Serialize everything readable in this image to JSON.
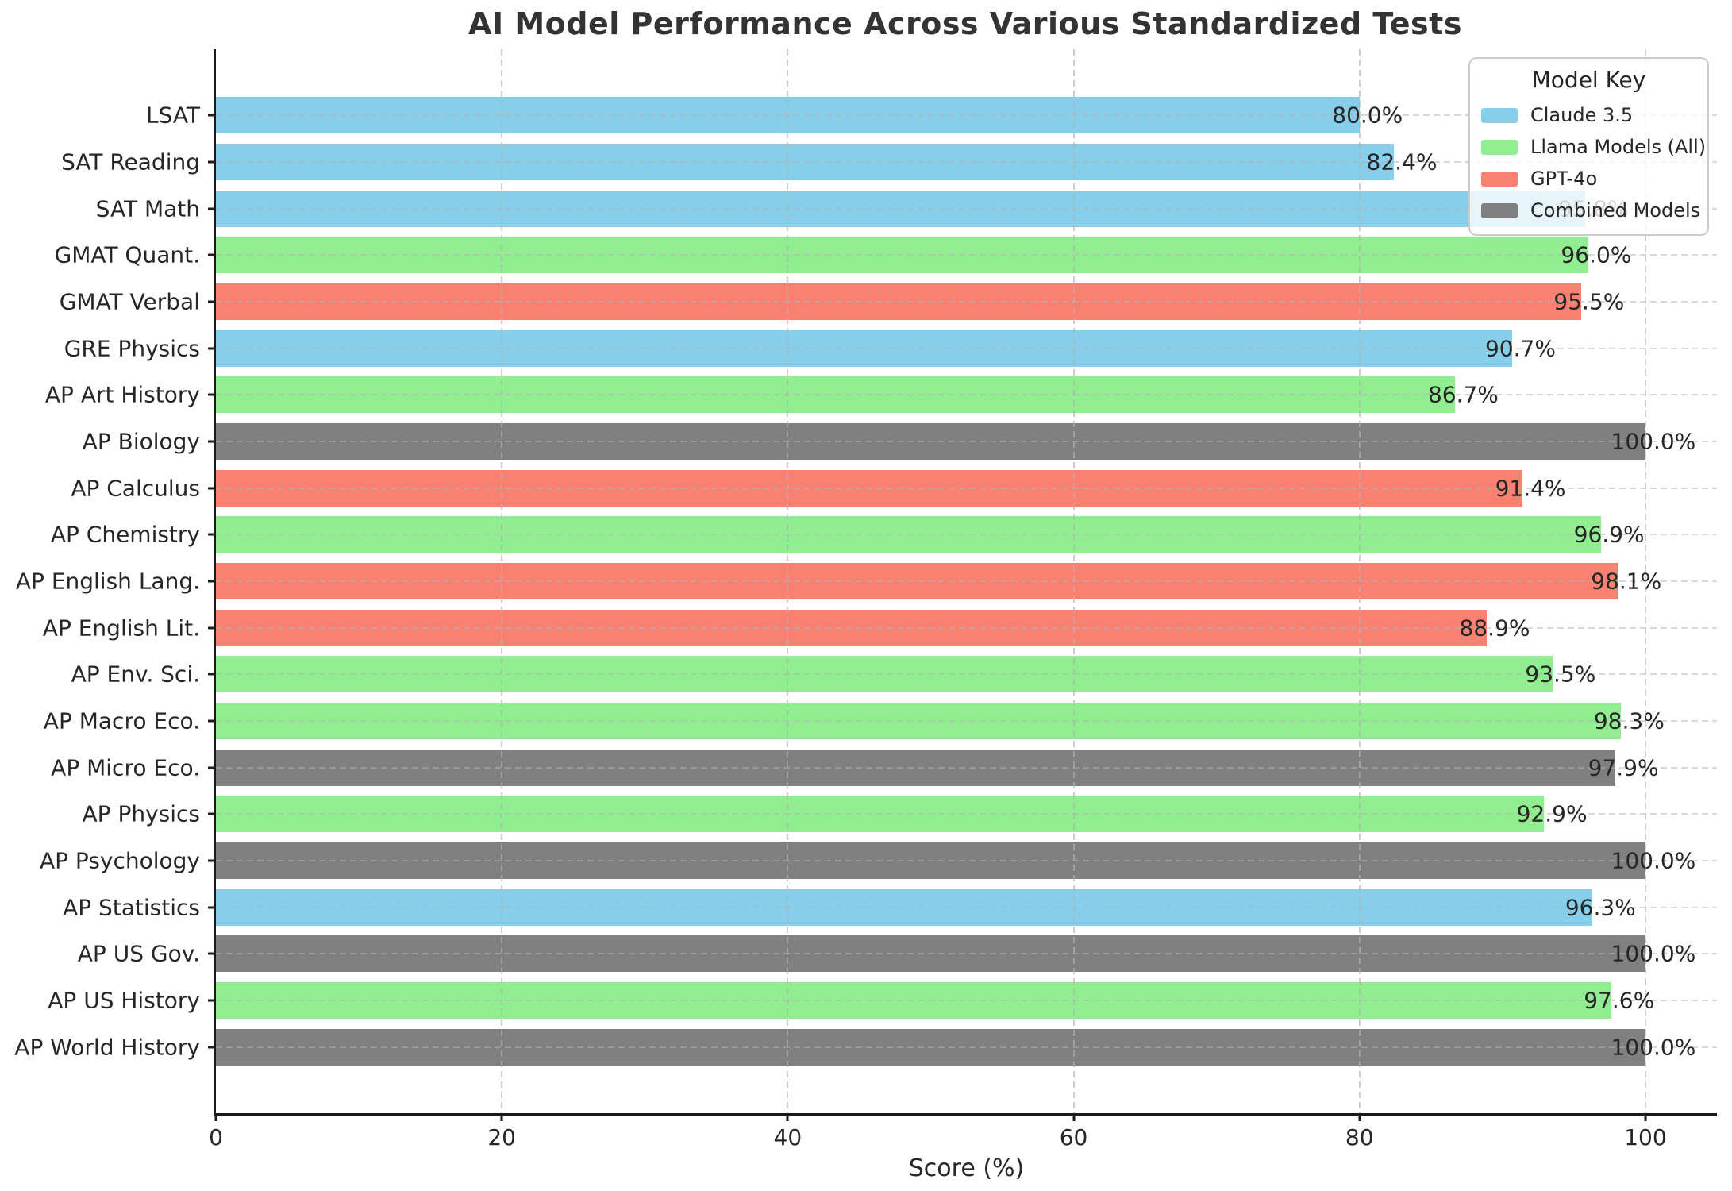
{
  "title": "AI Model Performance Across Various Standardized Tests",
  "chart_data": {
    "type": "bar",
    "orientation": "horizontal",
    "title": "AI Model Performance Across Various Standardized Tests",
    "xlabel": "Score (%)",
    "ylabel": "",
    "xlim": [
      0,
      105
    ],
    "xticks": [
      0,
      20,
      40,
      60,
      80,
      100
    ],
    "grid": true,
    "legend": {
      "title": "Model Key",
      "position": "upper-right",
      "entries": [
        {
          "label": "Claude 3.5",
          "color": "#87CEEB"
        },
        {
          "label": "Llama Models (All)",
          "color": "#90EE90"
        },
        {
          "label": "GPT-4o",
          "color": "#FA8072"
        },
        {
          "label": "Combined Models",
          "color": "#808080"
        }
      ]
    },
    "colors_by_model": {
      "Claude 3.5": "#87CEEB",
      "Llama Models (All)": "#90EE90",
      "GPT-4o": "#FA8072",
      "Combined Models": "#808080"
    },
    "bars": [
      {
        "category": "LSAT",
        "value": 80.0,
        "label": "80.0%",
        "model": "Claude 3.5"
      },
      {
        "category": "SAT Reading",
        "value": 82.4,
        "label": "82.4%",
        "model": "Claude 3.5"
      },
      {
        "category": "SAT Math",
        "value": 95.8,
        "label": "95.8%",
        "model": "Claude 3.5"
      },
      {
        "category": "GMAT Quant.",
        "value": 96.0,
        "label": "96.0%",
        "model": "Llama Models (All)"
      },
      {
        "category": "GMAT Verbal",
        "value": 95.5,
        "label": "95.5%",
        "model": "GPT-4o"
      },
      {
        "category": "GRE Physics",
        "value": 90.7,
        "label": "90.7%",
        "model": "Claude 3.5"
      },
      {
        "category": "AP Art History",
        "value": 86.7,
        "label": "86.7%",
        "model": "Llama Models (All)"
      },
      {
        "category": "AP Biology",
        "value": 100.0,
        "label": "100.0%",
        "model": "Combined Models"
      },
      {
        "category": "AP Calculus",
        "value": 91.4,
        "label": "91.4%",
        "model": "GPT-4o"
      },
      {
        "category": "AP Chemistry",
        "value": 96.9,
        "label": "96.9%",
        "model": "Llama Models (All)"
      },
      {
        "category": "AP English Lang.",
        "value": 98.1,
        "label": "98.1%",
        "model": "GPT-4o"
      },
      {
        "category": "AP English Lit.",
        "value": 88.9,
        "label": "88.9%",
        "model": "GPT-4o"
      },
      {
        "category": "AP Env. Sci.",
        "value": 93.5,
        "label": "93.5%",
        "model": "Llama Models (All)"
      },
      {
        "category": "AP Macro Eco.",
        "value": 98.3,
        "label": "98.3%",
        "model": "Llama Models (All)"
      },
      {
        "category": "AP Micro Eco.",
        "value": 97.9,
        "label": "97.9%",
        "model": "Combined Models"
      },
      {
        "category": "AP Physics",
        "value": 92.9,
        "label": "92.9%",
        "model": "Llama Models (All)"
      },
      {
        "category": "AP Psychology",
        "value": 100.0,
        "label": "100.0%",
        "model": "Combined Models"
      },
      {
        "category": "AP Statistics",
        "value": 96.3,
        "label": "96.3%",
        "model": "Claude 3.5"
      },
      {
        "category": "AP US Gov.",
        "value": 100.0,
        "label": "100.0%",
        "model": "Combined Models"
      },
      {
        "category": "AP US History",
        "value": 97.6,
        "label": "97.6%",
        "model": "Llama Models (All)"
      },
      {
        "category": "AP World History",
        "value": 100.0,
        "label": "100.0%",
        "model": "Combined Models"
      }
    ]
  }
}
